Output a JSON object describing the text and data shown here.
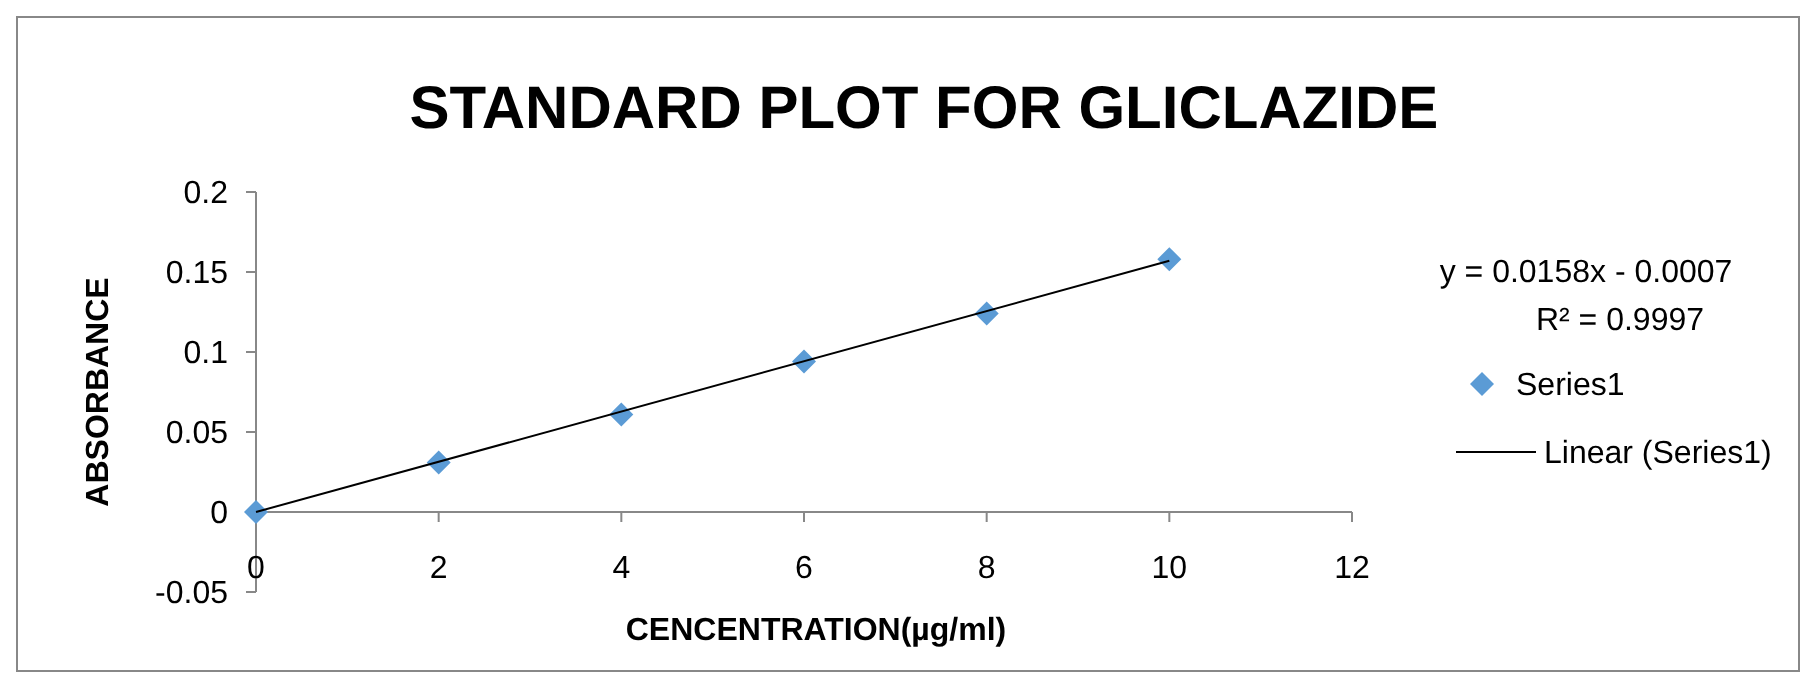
{
  "chart_data": {
    "type": "scatter",
    "title": "STANDARD PLOT FOR GLICLAZIDE",
    "xlabel": "CENCENTRATION(µg/ml)",
    "ylabel": "ABSORBANCE",
    "x": [
      0,
      2,
      4,
      6,
      8,
      10
    ],
    "series": [
      {
        "name": "Series1",
        "color": "#5b9bd5",
        "marker": "diamond",
        "values": [
          0,
          0.031,
          0.061,
          0.094,
          0.124,
          0.158
        ]
      },
      {
        "name": "Linear (Series1)",
        "type": "line",
        "color": "#000000",
        "marker": "none",
        "x": [
          0,
          10
        ],
        "values": [
          0,
          0.157
        ]
      }
    ],
    "xlim": [
      0,
      12
    ],
    "xticks": [
      0,
      2,
      4,
      6,
      8,
      10,
      12
    ],
    "ylim": [
      -0.05,
      0.2
    ],
    "yticks": [
      -0.05,
      0,
      0.05,
      0.1,
      0.15,
      0.2
    ],
    "grid": false,
    "legend": "right",
    "annotations": [
      "y = 0.0158x - 0.0007",
      "R² = 0.9997"
    ]
  }
}
